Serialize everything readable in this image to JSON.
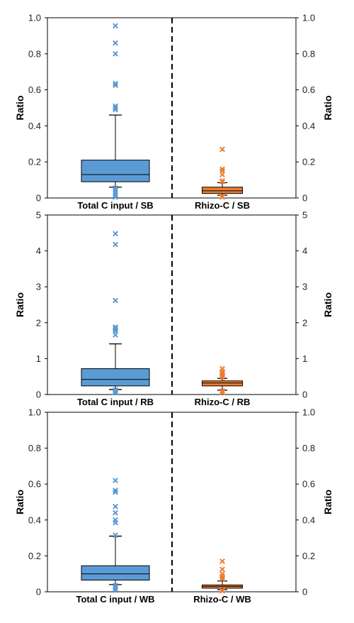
{
  "colors": {
    "left_box": "#5b9bd5",
    "left_outlier": "#5b9bd5",
    "right_box": "#ed7d31",
    "right_outlier": "#ed7d31",
    "axis": "#000000",
    "divider": "#000000"
  },
  "chart_data": [
    {
      "type": "box",
      "ylabel": "Ratio",
      "y2label": "Ratio",
      "ylim": [
        0,
        1.0
      ],
      "yticks": [
        "0",
        "0.2",
        "0.4",
        "0.6",
        "0.8",
        "1.0"
      ],
      "y2ticks": [
        "0",
        "0.2",
        "0.4",
        "0.6",
        "0.8",
        "1.0"
      ],
      "grid": false,
      "divider": "dashed",
      "categories": [
        "Total C input / SB",
        "Rhizo-C / SB"
      ],
      "boxes": [
        {
          "name": "Total C input / SB",
          "whisker_low": 0.06,
          "q1": 0.09,
          "median": 0.13,
          "q3": 0.21,
          "whisker_high": 0.46,
          "outliers": [
            0.955,
            0.86,
            0.8,
            0.635,
            0.625,
            0.51,
            0.5,
            0.49,
            0.055,
            0.045,
            0.035,
            0.025,
            0.015,
            0.005
          ]
        },
        {
          "name": "Rhizo-C / SB",
          "whisker_low": 0.015,
          "q1": 0.025,
          "median": 0.04,
          "q3": 0.06,
          "whisker_high": 0.085,
          "outliers": [
            0.27,
            0.16,
            0.15,
            0.13,
            0.095,
            0.09,
            0.01,
            0.005
          ]
        }
      ]
    },
    {
      "type": "box",
      "ylabel": "Ratio",
      "y2label": "Ratio",
      "ylim": [
        0,
        5
      ],
      "yticks": [
        "0",
        "1",
        "2",
        "3",
        "4",
        "5"
      ],
      "y2ticks": [
        "0",
        "1",
        "2",
        "3",
        "4",
        "5"
      ],
      "grid": false,
      "divider": "dashed",
      "categories": [
        "Total C input / RB",
        "Rhizo-C / RB"
      ],
      "boxes": [
        {
          "name": "Total C input / RB",
          "whisker_low": 0.14,
          "q1": 0.24,
          "median": 0.42,
          "q3": 0.72,
          "whisker_high": 1.41,
          "outliers": [
            4.48,
            4.18,
            2.62,
            1.88,
            1.84,
            1.8,
            1.76,
            1.66,
            0.13,
            0.11,
            0.08,
            0.05
          ]
        },
        {
          "name": "Rhizo-C / RB",
          "whisker_low": 0.12,
          "q1": 0.24,
          "median": 0.32,
          "q3": 0.38,
          "whisker_high": 0.45,
          "outliers": [
            0.72,
            0.64,
            0.6,
            0.56,
            0.52,
            0.48,
            0.1,
            0.06
          ]
        }
      ]
    },
    {
      "type": "box",
      "ylabel": "Ratio",
      "y2label": "Ratio",
      "ylim": [
        0,
        1.0
      ],
      "yticks": [
        "0",
        "0.2",
        "0.4",
        "0.6",
        "0.8",
        "1.0"
      ],
      "y2ticks": [
        "0",
        "0.2",
        "0.4",
        "0.6",
        "0.8",
        "1.0"
      ],
      "grid": false,
      "divider": "dashed",
      "categories": [
        "Total C input / WB",
        "Rhizo-C / WB"
      ],
      "boxes": [
        {
          "name": "Total C input / WB",
          "whisker_low": 0.04,
          "q1": 0.065,
          "median": 0.1,
          "q3": 0.145,
          "whisker_high": 0.31,
          "outliers": [
            0.62,
            0.565,
            0.555,
            0.475,
            0.44,
            0.4,
            0.385,
            0.315,
            0.035,
            0.025,
            0.015,
            0.008
          ]
        },
        {
          "name": "Rhizo-C / WB",
          "whisker_low": 0.012,
          "q1": 0.02,
          "median": 0.03,
          "q3": 0.038,
          "whisker_high": 0.06,
          "outliers": [
            0.17,
            0.125,
            0.1,
            0.085,
            0.075,
            0.07,
            0.01,
            0.005
          ]
        }
      ]
    }
  ]
}
